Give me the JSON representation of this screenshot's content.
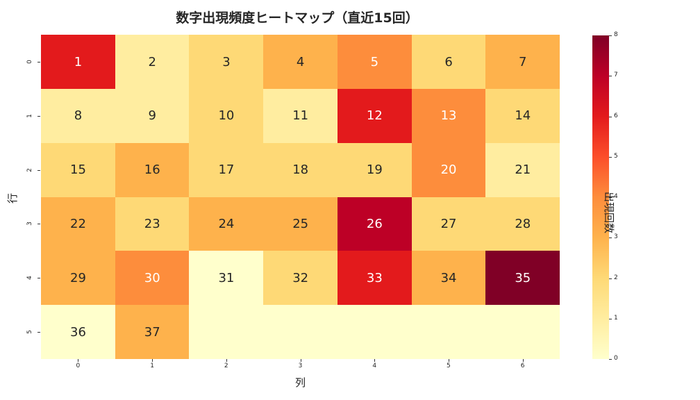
{
  "title": "数字出現頻度ヒートマップ（直近15回）",
  "xlabel": "列",
  "ylabel": "行",
  "colorbar_label": "出現回数",
  "colors": {
    "scale": [
      "#ffffcc",
      "#ffeda0",
      "#fed976",
      "#feb24c",
      "#fd8d3c",
      "#fc4e2a",
      "#e31a1c",
      "#bd0026",
      "#800026"
    ]
  },
  "chart_data": {
    "type": "heatmap",
    "title": "数字出現頻度ヒートマップ（直近15回）",
    "xlabel": "列",
    "ylabel": "行",
    "x_ticks": [
      "0",
      "1",
      "2",
      "3",
      "4",
      "5",
      "6"
    ],
    "y_ticks": [
      "0",
      "1",
      "2",
      "3",
      "4",
      "5"
    ],
    "colorbar": {
      "label": "出現回数",
      "ticks": [
        0,
        1,
        2,
        3,
        4,
        5,
        6,
        7,
        8
      ],
      "range": [
        0,
        8
      ],
      "colormap": "YlOrRd"
    },
    "cell_labels": [
      [
        "1",
        "2",
        "3",
        "4",
        "5",
        "6",
        "7"
      ],
      [
        "8",
        "9",
        "10",
        "11",
        "12",
        "13",
        "14"
      ],
      [
        "15",
        "16",
        "17",
        "18",
        "19",
        "20",
        "21"
      ],
      [
        "22",
        "23",
        "24",
        "25",
        "26",
        "27",
        "28"
      ],
      [
        "29",
        "30",
        "31",
        "32",
        "33",
        "34",
        "35"
      ],
      [
        "36",
        "37",
        "",
        "",
        "",
        "",
        ""
      ]
    ],
    "values": [
      [
        6,
        1,
        2,
        3,
        4,
        2,
        3
      ],
      [
        1,
        1,
        2,
        1,
        6,
        4,
        2
      ],
      [
        2,
        3,
        2,
        2,
        2,
        4,
        1
      ],
      [
        3,
        2,
        3,
        3,
        7,
        2,
        2
      ],
      [
        3,
        4,
        0,
        2,
        6,
        3,
        8
      ],
      [
        0,
        3,
        0,
        0,
        0,
        0,
        0
      ]
    ]
  }
}
